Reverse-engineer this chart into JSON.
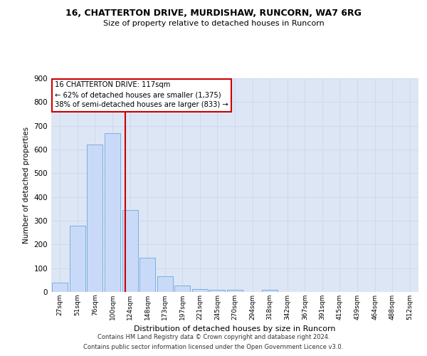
{
  "title1": "16, CHATTERTON DRIVE, MURDISHAW, RUNCORN, WA7 6RG",
  "title2": "Size of property relative to detached houses in Runcorn",
  "xlabel": "Distribution of detached houses by size in Runcorn",
  "ylabel": "Number of detached properties",
  "bar_labels": [
    "27sqm",
    "51sqm",
    "76sqm",
    "100sqm",
    "124sqm",
    "148sqm",
    "173sqm",
    "197sqm",
    "221sqm",
    "245sqm",
    "270sqm",
    "294sqm",
    "318sqm",
    "342sqm",
    "367sqm",
    "391sqm",
    "415sqm",
    "439sqm",
    "464sqm",
    "488sqm",
    "512sqm"
  ],
  "bar_values": [
    40,
    280,
    620,
    670,
    345,
    145,
    65,
    28,
    13,
    10,
    10,
    0,
    8,
    0,
    0,
    0,
    0,
    0,
    0,
    0,
    0
  ],
  "bar_color": "#c9daf8",
  "bar_edge_color": "#6fa8dc",
  "vline_x": 3.74,
  "vline_color": "#cc0000",
  "annotation_line1": "16 CHATTERTON DRIVE: 117sqm",
  "annotation_line2": "← 62% of detached houses are smaller (1,375)",
  "annotation_line3": "38% of semi-detached houses are larger (833) →",
  "annotation_box_color": "#ffffff",
  "annotation_box_edge": "#cc0000",
  "ylim": [
    0,
    900
  ],
  "yticks": [
    0,
    100,
    200,
    300,
    400,
    500,
    600,
    700,
    800,
    900
  ],
  "grid_color": "#cdd7eb",
  "bg_color": "#dce6f5",
  "footer1": "Contains HM Land Registry data © Crown copyright and database right 2024.",
  "footer2": "Contains public sector information licensed under the Open Government Licence v3.0."
}
